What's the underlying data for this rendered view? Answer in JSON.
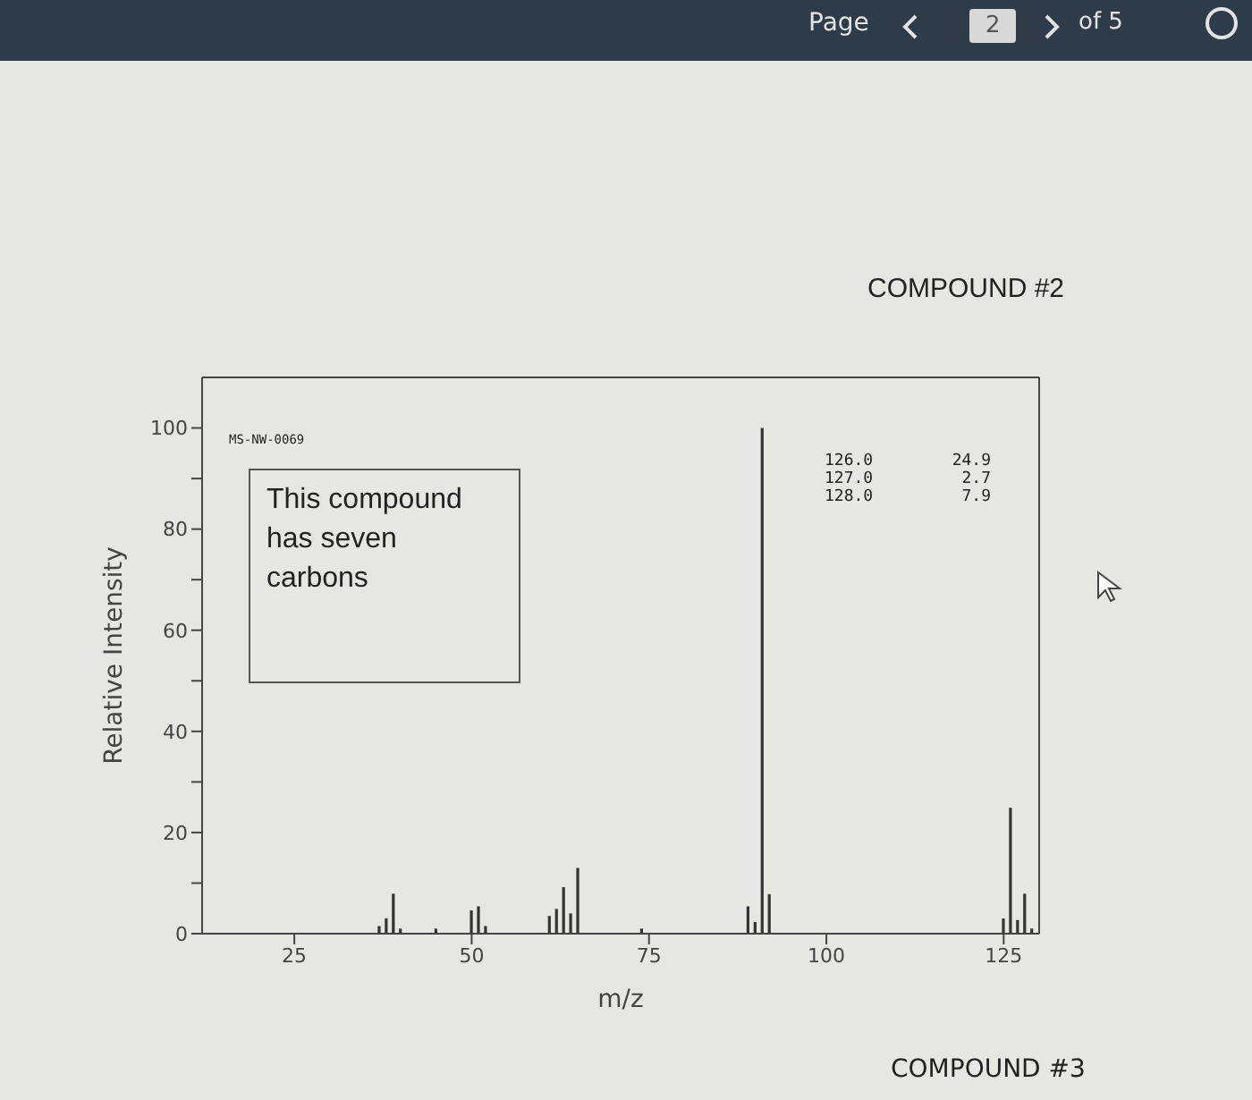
{
  "chart_data": {
    "type": "bar",
    "title": "COMPOUND #2",
    "xlabel": "m/z",
    "ylabel": "Relative Intensity",
    "x": [
      37,
      38,
      39,
      40,
      45,
      50,
      51,
      52,
      61,
      62,
      63,
      64,
      65,
      74,
      89,
      90,
      91,
      92,
      125,
      126,
      127,
      128,
      129
    ],
    "values": [
      1.5,
      3,
      7.9,
      1,
      1,
      4.6,
      5.4,
      1.5,
      3.5,
      4.9,
      9.2,
      4,
      13,
      1,
      5.4,
      2.3,
      100,
      7.8,
      3,
      24.9,
      2.7,
      7.9,
      1
    ],
    "color": "#333333",
    "xlim": [
      12,
      130
    ],
    "xticks": [
      25,
      50,
      75,
      100,
      125
    ],
    "ylim": [
      0,
      110
    ],
    "yticks": [
      0,
      {
        "value": 10,
        "label": null
      },
      20,
      {
        "value": 30,
        "label": null
      },
      40,
      {
        "value": 50,
        "label": null
      },
      60,
      {
        "value": 70,
        "label": null
      },
      80,
      {
        "value": 90,
        "label": null
      },
      100
    ],
    "annotations": [
      "MS-NW-0069",
      "This compound has seven carbons",
      "126.0",
      "127.0",
      "128.0",
      "24.9",
      "2.7",
      "7.9",
      "COMPOUND #3",
      "Page",
      "2",
      "of 5"
    ]
  }
}
